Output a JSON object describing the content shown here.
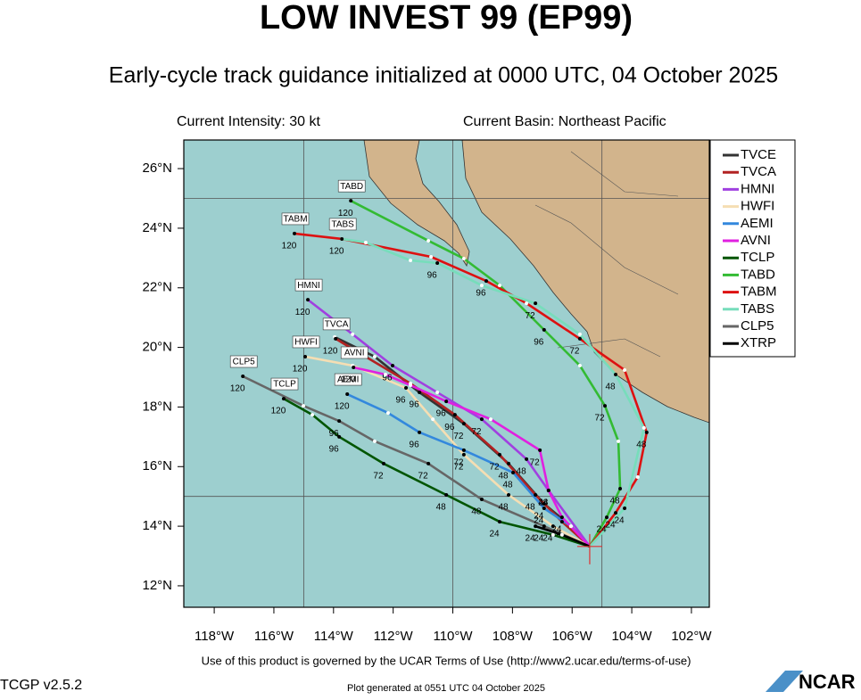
{
  "chart_data": {
    "type": "track-map",
    "title": "LOW INVEST 99 (EP99)",
    "subtitle": "Early-cycle track guidance initialized at 0000 UTC, 04 October 2025",
    "intensity": "Current Intensity: 30 kt",
    "basin": "Current Basin: Northeast Pacific",
    "terms": "Use of this product is governed by the UCAR Terms of Use (http://www2.ucar.edu/terms-of-use)",
    "version": "TCGP v2.5.2",
    "generated": "Plot generated at 0551 UTC   04 October 2025",
    "logo": "NCAR",
    "xlim": [
      -119.02,
      -101.4
    ],
    "ylim": [
      11.28,
      26.96
    ],
    "xticks": [
      {
        "value": -118,
        "label": "118°W"
      },
      {
        "value": -116,
        "label": "116°W"
      },
      {
        "value": -114,
        "label": "114°W"
      },
      {
        "value": -112,
        "label": "112°W"
      },
      {
        "value": -110,
        "label": "110°W"
      },
      {
        "value": -108,
        "label": "108°W"
      },
      {
        "value": -106,
        "label": "106°W"
      },
      {
        "value": -104,
        "label": "104°W"
      },
      {
        "value": -102,
        "label": "102°W"
      }
    ],
    "yticks": [
      {
        "value": 12,
        "label": "12°N"
      },
      {
        "value": 14,
        "label": "14°N"
      },
      {
        "value": 16,
        "label": "16°N"
      },
      {
        "value": 18,
        "label": "18°N"
      },
      {
        "value": 20,
        "label": "20°N"
      },
      {
        "value": 22,
        "label": "22°N"
      },
      {
        "value": 24,
        "label": "24°N"
      },
      {
        "value": 26,
        "label": "26°N"
      }
    ],
    "grid_lon": [
      -115,
      -110,
      -105
    ],
    "grid_lat": [
      15,
      25
    ],
    "labeled_hours": [
      24,
      48,
      72,
      96,
      120
    ],
    "series": [
      {
        "name": "TVCE",
        "color": "#333333",
        "hours": [
          0,
          12,
          24,
          48,
          72,
          96,
          102,
          108
        ],
        "lon": [
          -105.41,
          -106.04,
          -106.94,
          -108.13,
          -109.63,
          -111.12,
          -112.62,
          -113.96
        ],
        "lat": [
          13.32,
          14.0,
          14.75,
          16.1,
          17.44,
          18.49,
          19.69,
          20.35
        ]
      },
      {
        "name": "TVCA",
        "color": "#b22222",
        "hours": [
          0,
          24,
          48,
          72,
          96,
          108,
          120
        ],
        "lon": [
          -105.41,
          -106.34,
          -107.23,
          -108.43,
          -109.93,
          -111.42,
          -113.93
        ],
        "lat": [
          13.32,
          14.15,
          15.05,
          16.4,
          17.74,
          18.79,
          20.29
        ]
      },
      {
        "name": "HMNI",
        "color": "#a040e0",
        "hours": [
          0,
          24,
          48,
          72,
          84,
          96,
          108,
          120
        ],
        "lon": [
          -105.41,
          -106.79,
          -107.53,
          -109.03,
          -110.52,
          -112.02,
          -113.36,
          -114.86
        ],
        "lat": [
          13.32,
          15.2,
          16.25,
          17.59,
          18.49,
          19.39,
          20.44,
          21.6
        ]
      },
      {
        "name": "HWFI",
        "color": "#f5deb3",
        "hours": [
          0,
          24,
          48,
          72,
          84,
          96,
          108,
          120
        ],
        "lon": [
          -105.41,
          -106.64,
          -108.13,
          -109.63,
          -110.67,
          -111.57,
          -113.36,
          -114.95
        ],
        "lat": [
          13.32,
          14.0,
          15.05,
          16.4,
          17.59,
          18.64,
          19.39,
          19.69
        ]
      },
      {
        "name": "AEMI",
        "color": "#3388dd",
        "hours": [
          0,
          12,
          24,
          48,
          72,
          96,
          108,
          120
        ],
        "lon": [
          -105.41,
          -106.04,
          -106.94,
          -107.98,
          -109.63,
          -111.12,
          -112.17,
          -113.54
        ],
        "lat": [
          13.32,
          14.0,
          14.6,
          15.8,
          16.55,
          17.15,
          17.8,
          18.43
        ]
      },
      {
        "name": "AVNI",
        "color": "#e020e0",
        "hours": [
          0,
          24,
          48,
          72,
          84,
          96,
          102,
          108,
          120
        ],
        "lon": [
          -105.41,
          -106.34,
          -106.79,
          -107.08,
          -108.73,
          -110.22,
          -111.42,
          -112.26,
          -113.33
        ],
        "lat": [
          13.32,
          14.3,
          15.2,
          16.55,
          17.59,
          18.19,
          18.73,
          19.09,
          19.33
        ]
      },
      {
        "name": "TCLP",
        "color": "#005500",
        "hours": [
          0,
          12,
          24,
          48,
          72,
          96,
          108,
          120
        ],
        "lon": [
          -105.41,
          -106.64,
          -108.43,
          -110.22,
          -112.32,
          -113.81,
          -114.71,
          -115.67
        ],
        "lat": [
          13.32,
          13.71,
          14.15,
          15.05,
          16.1,
          17.0,
          17.74,
          18.28
        ]
      },
      {
        "name": "TABD",
        "color": "#33bb33",
        "hours": [
          0,
          24,
          48,
          60,
          72,
          84,
          96,
          102,
          108,
          114,
          120
        ],
        "lon": [
          -105.41,
          -104.84,
          -104.39,
          -104.45,
          -104.9,
          -105.74,
          -106.94,
          -108.43,
          -109.63,
          -110.82,
          -113.42
        ],
        "lat": [
          13.32,
          14.3,
          15.26,
          16.85,
          18.04,
          19.39,
          20.59,
          22.08,
          22.98,
          23.58,
          24.92
        ]
      },
      {
        "name": "TABM",
        "color": "#dd1111",
        "hours": [
          0,
          24,
          36,
          48,
          60,
          72,
          84,
          96,
          102,
          114,
          120
        ],
        "lon": [
          -105.41,
          -104.54,
          -103.8,
          -103.5,
          -104.24,
          -105.74,
          -107.53,
          -108.88,
          -110.73,
          -113.72,
          -115.31
        ],
        "lat": [
          13.32,
          14.45,
          15.65,
          17.15,
          19.24,
          20.29,
          21.48,
          22.23,
          23.04,
          23.64,
          23.82
        ]
      },
      {
        "name": "TABS",
        "color": "#77ddbb",
        "hours": [
          0,
          24,
          36,
          48,
          60,
          72,
          84,
          96,
          102,
          114,
          120
        ],
        "lon": [
          -105.41,
          -104.24,
          -103.59,
          -104.54,
          -105.74,
          -107.23,
          -109.03,
          -110.52,
          -111.42,
          -112.92,
          -113.72
        ],
        "lat": [
          13.32,
          14.6,
          17.3,
          19.09,
          20.44,
          21.48,
          22.08,
          22.83,
          22.92,
          23.52,
          23.64
        ]
      },
      {
        "name": "CLP5",
        "color": "#666666",
        "hours": [
          0,
          24,
          48,
          72,
          84,
          96,
          108,
          120
        ],
        "lon": [
          -105.41,
          -106.94,
          -109.03,
          -110.82,
          -112.62,
          -113.81,
          -115.01,
          -117.04
        ],
        "lat": [
          13.32,
          14.0,
          14.9,
          16.1,
          16.85,
          17.53,
          18.04,
          19.03
        ]
      },
      {
        "name": "XTRP",
        "color": "#000000",
        "hours": [
          0,
          12,
          24
        ],
        "lon": [
          -105.41,
          -106.34,
          -107.23
        ],
        "lat": [
          13.32,
          13.71,
          14.0
        ]
      }
    ]
  }
}
